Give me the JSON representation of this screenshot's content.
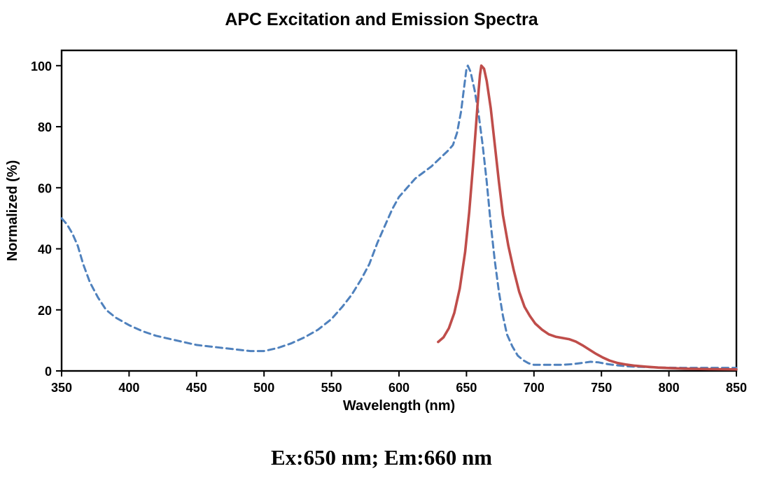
{
  "title": "APC Excitation and Emission Spectra",
  "caption": "Ex:650 nm; Em:660 nm",
  "colors": {
    "excitation": "#4f81bd",
    "emission": "#bf4d4a",
    "axis": "#000000",
    "background": "#ffffff"
  },
  "chart_data": {
    "type": "line",
    "title": "APC Excitation and Emission Spectra",
    "xlabel": "Wavelength (nm)",
    "ylabel": "Normalized (%)",
    "xlim": [
      350,
      850
    ],
    "ylim": [
      0,
      105
    ],
    "x_ticks": [
      350,
      400,
      450,
      500,
      550,
      600,
      650,
      700,
      750,
      800,
      850
    ],
    "y_ticks": [
      0,
      20,
      40,
      60,
      80,
      100
    ],
    "grid": false,
    "legend": "none",
    "annotation": "Ex:650 nm; Em:660 nm",
    "series": [
      {
        "name": "Excitation",
        "style": "dashed",
        "color": "#4f81bd",
        "peak_nm": 650,
        "points": [
          [
            350,
            50
          ],
          [
            354,
            48
          ],
          [
            358,
            45
          ],
          [
            362,
            41
          ],
          [
            366,
            35
          ],
          [
            371,
            29
          ],
          [
            377,
            24
          ],
          [
            383,
            20
          ],
          [
            390,
            17.5
          ],
          [
            400,
            15
          ],
          [
            410,
            13
          ],
          [
            420,
            11.5
          ],
          [
            430,
            10.5
          ],
          [
            440,
            9.5
          ],
          [
            450,
            8.5
          ],
          [
            460,
            8
          ],
          [
            470,
            7.5
          ],
          [
            480,
            7
          ],
          [
            490,
            6.5
          ],
          [
            500,
            6.5
          ],
          [
            510,
            7.5
          ],
          [
            520,
            9
          ],
          [
            530,
            11
          ],
          [
            540,
            13.5
          ],
          [
            550,
            17
          ],
          [
            558,
            21
          ],
          [
            565,
            25
          ],
          [
            572,
            30
          ],
          [
            578,
            35
          ],
          [
            584,
            42
          ],
          [
            590,
            48
          ],
          [
            595,
            53
          ],
          [
            600,
            57
          ],
          [
            606,
            60
          ],
          [
            612,
            63
          ],
          [
            618,
            65
          ],
          [
            624,
            67
          ],
          [
            630,
            69.5
          ],
          [
            636,
            72
          ],
          [
            640,
            74
          ],
          [
            643,
            78
          ],
          [
            646,
            85
          ],
          [
            648,
            92
          ],
          [
            650,
            99
          ],
          [
            651,
            100
          ],
          [
            653,
            98
          ],
          [
            656,
            92
          ],
          [
            659,
            84
          ],
          [
            662,
            74
          ],
          [
            665,
            62
          ],
          [
            668,
            48
          ],
          [
            671,
            36
          ],
          [
            674,
            26
          ],
          [
            677,
            18
          ],
          [
            680,
            12
          ],
          [
            684,
            8
          ],
          [
            688,
            5
          ],
          [
            692,
            3.5
          ],
          [
            696,
            2.5
          ],
          [
            700,
            2
          ],
          [
            710,
            2
          ],
          [
            720,
            2
          ],
          [
            728,
            2.2
          ],
          [
            735,
            2.6
          ],
          [
            742,
            3
          ],
          [
            748,
            2.8
          ],
          [
            755,
            2.2
          ],
          [
            762,
            1.8
          ],
          [
            770,
            1.5
          ],
          [
            780,
            1.3
          ],
          [
            795,
            1.1
          ],
          [
            810,
            1
          ],
          [
            830,
            1
          ],
          [
            850,
            1
          ]
        ]
      },
      {
        "name": "Emission",
        "style": "solid",
        "color": "#bf4d4a",
        "peak_nm": 660,
        "points": [
          [
            629,
            9.5
          ],
          [
            633,
            11
          ],
          [
            637,
            14
          ],
          [
            641,
            19
          ],
          [
            645,
            27
          ],
          [
            649,
            39
          ],
          [
            652,
            52
          ],
          [
            655,
            68
          ],
          [
            657,
            80
          ],
          [
            659,
            92
          ],
          [
            660,
            97
          ],
          [
            661,
            100
          ],
          [
            663,
            99
          ],
          [
            665,
            95
          ],
          [
            668,
            86
          ],
          [
            671,
            74
          ],
          [
            674,
            62
          ],
          [
            677,
            51
          ],
          [
            681,
            41
          ],
          [
            685,
            33
          ],
          [
            689,
            26
          ],
          [
            693,
            21
          ],
          [
            697,
            18
          ],
          [
            701,
            15.5
          ],
          [
            706,
            13.5
          ],
          [
            711,
            12
          ],
          [
            716,
            11.2
          ],
          [
            721,
            10.8
          ],
          [
            726,
            10.4
          ],
          [
            731,
            9.6
          ],
          [
            736,
            8.4
          ],
          [
            741,
            7
          ],
          [
            746,
            5.6
          ],
          [
            751,
            4.4
          ],
          [
            756,
            3.4
          ],
          [
            762,
            2.6
          ],
          [
            768,
            2.1
          ],
          [
            775,
            1.7
          ],
          [
            783,
            1.4
          ],
          [
            792,
            1.1
          ],
          [
            802,
            0.9
          ],
          [
            815,
            0.7
          ],
          [
            830,
            0.6
          ],
          [
            850,
            0.5
          ]
        ]
      }
    ]
  }
}
